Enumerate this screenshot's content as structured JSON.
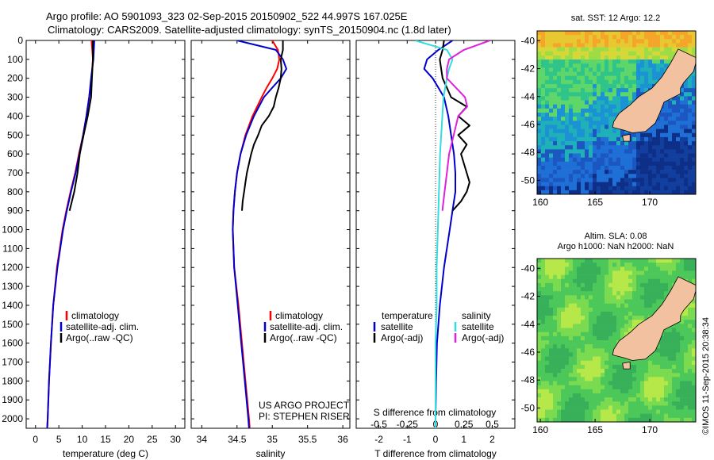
{
  "header": {
    "line1": "Argo profile: AO 5901093_323 02-Sep-2015 20150902_522 44.997S 167.025E",
    "line2": "Climatology: CARS2009. Satellite-adjusted climatology: synTS_20150904.nc (1.8d later)"
  },
  "colors": {
    "climatology": "#ff0000",
    "satellite": "#0000cc",
    "argo": "#000000",
    "salinity_sat": "#33dddd",
    "salinity_argo": "#dd22dd",
    "land": "#f2c2a0"
  },
  "depth_ticks": [
    "0",
    "100",
    "200",
    "300",
    "400",
    "500",
    "600",
    "700",
    "800",
    "900",
    "1000",
    "1100",
    "1200",
    "1300",
    "1400",
    "1500",
    "1600",
    "1700",
    "1800",
    "1900",
    "2000"
  ],
  "panels": {
    "temperature": {
      "xlabel": "temperature (deg C)",
      "xticks": [
        "0",
        "5",
        "10",
        "15",
        "20",
        "25",
        "30"
      ],
      "legend": [
        "climatology",
        "satellite-adj. clim.",
        "Argo(..raw -QC)"
      ]
    },
    "salinity": {
      "xlabel": "salinity",
      "xticks": [
        "34",
        "34.5",
        "35",
        "35.5",
        "36"
      ],
      "legend": [
        "climatology",
        "satellite-adj. clim.",
        "Argo(..raw -QC)"
      ],
      "note1": "US ARGO PROJECT",
      "note2": "PI: STEPHEN RISER"
    },
    "difference": {
      "xlabel": "T difference from climatology",
      "xticks": [
        "-2",
        "-1",
        "0",
        "1",
        "2"
      ],
      "top_label": "S difference from climatology",
      "top_ticks": [
        "-0.5",
        "-0.25",
        "0",
        "0.25",
        "0.5"
      ],
      "leg_temp_title": "temperature",
      "leg_sal_title": "salinity",
      "leg_temp": [
        "satellite",
        "Argo(-adj)"
      ],
      "leg_sal": [
        "satellite",
        "Argo(-adj)"
      ]
    }
  },
  "maps": {
    "sst_title": "sat. SST: 12 Argo: 12.2",
    "sla_title1": "Altim. SLA: 0.08",
    "sla_title2": "Argo h1000: NaN h2000: NaN",
    "lat_ticks": [
      "-40",
      "-42",
      "-44",
      "-46",
      "-48",
      "-50"
    ],
    "lon_ticks": [
      "160",
      "165",
      "170"
    ],
    "stamp": "©IMOS 11-Sep-2015 20:38:34"
  },
  "chart_data": [
    {
      "type": "line",
      "title": "",
      "xlabel": "temperature (deg C)",
      "ylabel": "",
      "xlim": [
        -2,
        32
      ],
      "ylim": [
        2050,
        0
      ],
      "series": [
        {
          "name": "climatology",
          "y": [
            0,
            100,
            200,
            300,
            400,
            500,
            600,
            700,
            800,
            900,
            1000,
            1200,
            1400,
            1600,
            1800,
            2000,
            2050
          ],
          "values": [
            12.0,
            12.3,
            12.0,
            11.5,
            10.9,
            10.2,
            9.3,
            8.5,
            7.5,
            6.6,
            5.8,
            4.6,
            3.8,
            3.3,
            2.9,
            2.6,
            2.5
          ]
        },
        {
          "name": "satellite-adj. clim.",
          "y": [
            0,
            100,
            200,
            300,
            400,
            500,
            600,
            700,
            800,
            900,
            1000,
            1200,
            1400,
            1600,
            1800,
            2000,
            2050
          ],
          "values": [
            12.6,
            12.4,
            11.9,
            11.5,
            10.9,
            10.2,
            9.4,
            8.6,
            7.6,
            6.7,
            5.9,
            4.7,
            3.8,
            3.3,
            2.9,
            2.6,
            2.5
          ]
        },
        {
          "name": "Argo(..raw -QC)",
          "y": [
            0,
            100,
            200,
            300,
            400,
            500,
            600,
            700,
            800,
            900
          ],
          "values": [
            12.3,
            12.3,
            12.1,
            11.9,
            11.2,
            10.3,
            9.5,
            9.0,
            8.3,
            7.3
          ]
        }
      ]
    },
    {
      "type": "line",
      "title": "",
      "xlabel": "salinity",
      "ylabel": "",
      "xlim": [
        33.85,
        36.1
      ],
      "ylim": [
        2050,
        0
      ],
      "series": [
        {
          "name": "climatology",
          "y": [
            0,
            50,
            100,
            150,
            200,
            250,
            300,
            400,
            500,
            600,
            700,
            800,
            900,
            1000,
            1200,
            1400,
            1600,
            1800,
            2000,
            2050
          ],
          "values": [
            35.0,
            35.08,
            35.1,
            35.07,
            35.0,
            34.92,
            34.85,
            34.72,
            34.62,
            34.55,
            34.5,
            34.47,
            34.45,
            34.44,
            34.46,
            34.52,
            34.57,
            34.62,
            34.67,
            34.68
          ]
        },
        {
          "name": "satellite-adj. clim.",
          "y": [
            0,
            50,
            100,
            150,
            200,
            250,
            300,
            400,
            500,
            600,
            700,
            800,
            900,
            1000,
            1200,
            1400,
            1600,
            1800,
            2000,
            2050
          ],
          "values": [
            34.5,
            35.05,
            35.15,
            35.2,
            35.12,
            35.0,
            34.88,
            34.74,
            34.63,
            34.55,
            34.5,
            34.47,
            34.45,
            34.44,
            34.46,
            34.51,
            34.56,
            34.61,
            34.66,
            34.67
          ]
        },
        {
          "name": "Argo(..raw -QC)",
          "y": [
            0,
            50,
            100,
            150,
            200,
            250,
            300,
            350,
            400,
            450,
            500,
            550,
            600,
            650,
            700,
            750,
            800,
            850,
            900
          ],
          "values": [
            35.15,
            35.15,
            35.12,
            35.13,
            35.12,
            35.09,
            35.05,
            35.02,
            34.95,
            34.85,
            34.8,
            34.74,
            34.7,
            34.67,
            34.64,
            34.62,
            34.6,
            34.58,
            34.57
          ]
        }
      ]
    },
    {
      "type": "line",
      "title": "",
      "xlabel": "T difference from climatology",
      "ylabel": "",
      "xlim": [
        -2.8,
        2.8
      ],
      "ylim": [
        2050,
        0
      ],
      "series": [
        {
          "name": "temperature satellite",
          "y": [
            0,
            50,
            100,
            150,
            200,
            250,
            300,
            400,
            500,
            600,
            700,
            800,
            900,
            1000,
            1200,
            1400,
            1600,
            1800,
            2000,
            2050
          ],
          "values": [
            0.6,
            0.1,
            -0.3,
            -0.4,
            -0.1,
            0.1,
            0.3,
            0.45,
            0.55,
            0.65,
            0.7,
            0.7,
            0.6,
            0.5,
            0.3,
            0.15,
            0.05,
            0.02,
            0.0,
            0.0
          ]
        },
        {
          "name": "temperature Argo(-adj)",
          "y": [
            0,
            50,
            100,
            150,
            200,
            250,
            300,
            350,
            400,
            450,
            500,
            550,
            600,
            650,
            700,
            750,
            800,
            850,
            900
          ],
          "values": [
            0.3,
            0.25,
            0.15,
            0.2,
            0.25,
            0.4,
            0.55,
            1.1,
            0.8,
            1.2,
            0.8,
            1.1,
            0.9,
            1.0,
            1.1,
            1.2,
            1.1,
            0.9,
            0.6
          ]
        },
        {
          "name": "salinity satellite",
          "y": [
            0,
            50,
            100,
            150,
            200,
            300,
            400,
            600,
            800,
            1000,
            1200,
            1400,
            1600,
            1800,
            2000,
            2050
          ],
          "values": [
            -0.18,
            0.1,
            0.15,
            0.12,
            0.1,
            0.07,
            0.06,
            0.04,
            0.03,
            0.02,
            0.01,
            0.01,
            0.0,
            0.0,
            0.0,
            0.0
          ]
        },
        {
          "name": "salinity Argo(-adj)",
          "y": [
            0,
            50,
            100,
            150,
            200,
            250,
            300,
            350,
            400,
            500,
            600,
            700,
            800,
            850,
            900
          ],
          "values": [
            0.48,
            0.25,
            0.12,
            0.1,
            0.1,
            0.18,
            0.26,
            0.28,
            0.2,
            0.16,
            0.12,
            0.1,
            0.08,
            0.07,
            0.06
          ]
        }
      ]
    }
  ]
}
